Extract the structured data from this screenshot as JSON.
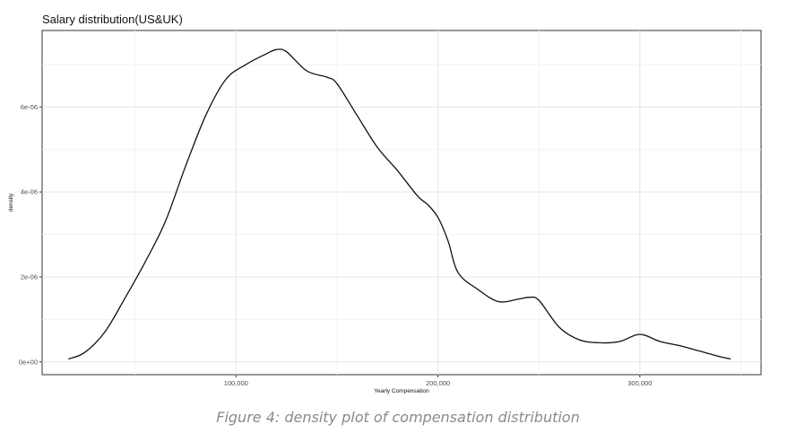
{
  "chart_data": {
    "type": "line",
    "title": "Salary distribution(US&UK)",
    "xlabel": "Yearly Compensation",
    "ylabel": "density",
    "xlim": [
      4000,
      360000
    ],
    "ylim": [
      -3e-07,
      7.8e-06
    ],
    "xticks": [
      100000,
      200000,
      300000
    ],
    "xtick_labels": [
      "100,000",
      "200,000",
      "300,000"
    ],
    "yticks": [
      0,
      2e-06,
      4e-06,
      6e-06
    ],
    "ytick_labels": [
      "0e+00",
      "2e-06",
      "4e-06",
      "6e-06"
    ],
    "grid": true,
    "series": [
      {
        "x": [
          17000,
          25000,
          35000,
          45000,
          55000,
          65000,
          75000,
          85000,
          95000,
          105000,
          115000,
          120000,
          125000,
          135000,
          145000,
          150000,
          160000,
          170000,
          180000,
          190000,
          195000,
          200000,
          205000,
          210000,
          220000,
          230000,
          240000,
          245000,
          250000,
          260000,
          270000,
          280000,
          290000,
          300000,
          310000,
          320000,
          330000,
          340000,
          345000
        ],
        "y": [
          7e-08,
          2.2e-07,
          7e-07,
          1.5e-06,
          2.35e-06,
          3.3e-06,
          4.6e-06,
          5.8e-06,
          6.65e-06,
          7e-06,
          7.25e-06,
          7.35e-06,
          7.3e-06,
          6.85e-06,
          6.7e-06,
          6.55e-06,
          5.8e-06,
          5.05e-06,
          4.5e-06,
          3.9e-06,
          3.7e-06,
          3.4e-06,
          2.85e-06,
          2.1e-06,
          1.7e-06,
          1.42e-06,
          1.48e-06,
          1.52e-06,
          1.45e-06,
          8.2e-07,
          5.2e-07,
          4.5e-07,
          4.8e-07,
          6.5e-07,
          4.8e-07,
          3.8e-07,
          2.5e-07,
          1.2e-07,
          7e-08
        ]
      }
    ]
  },
  "caption": "Figure 4: density plot of compensation distribution"
}
